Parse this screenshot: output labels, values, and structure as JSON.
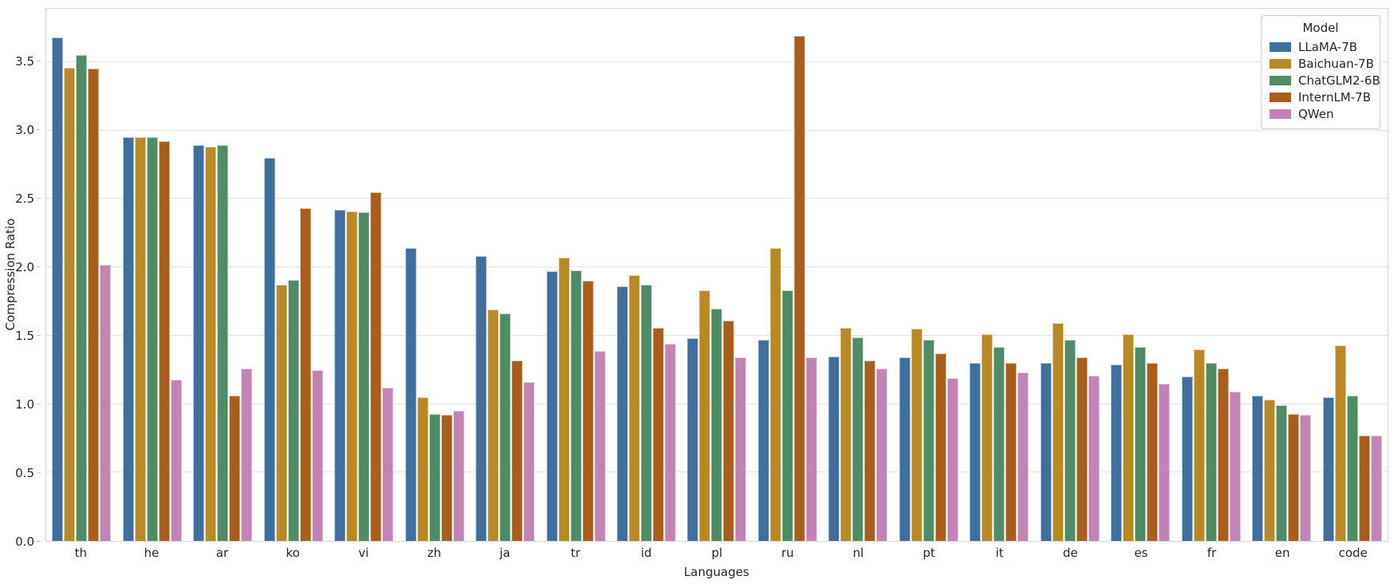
{
  "chart_data": {
    "type": "bar",
    "title": "",
    "xlabel": "Languages",
    "ylabel": "Compression Ratio",
    "legend_title": "Model",
    "legend_position": "upper right",
    "grid": true,
    "ylim": [
      0,
      3.89
    ],
    "yticks": [
      "0.0",
      "0.5",
      "1.0",
      "1.5",
      "2.0",
      "2.5",
      "3.0",
      "3.5"
    ],
    "ytick_values": [
      0.0,
      0.5,
      1.0,
      1.5,
      2.0,
      2.5,
      3.0,
      3.5
    ],
    "categories": [
      "th",
      "he",
      "ar",
      "ko",
      "vi",
      "zh",
      "ja",
      "tr",
      "id",
      "pl",
      "ru",
      "nl",
      "pt",
      "it",
      "de",
      "es",
      "fr",
      "en",
      "code"
    ],
    "series": [
      {
        "name": "LLaMA-7B",
        "color": "#3E6F9E",
        "values": [
          3.68,
          2.95,
          2.89,
          2.8,
          2.42,
          2.14,
          2.08,
          1.97,
          1.86,
          1.48,
          1.47,
          1.35,
          1.34,
          1.3,
          1.3,
          1.29,
          1.2,
          1.06,
          1.05
        ]
      },
      {
        "name": "Baichuan-7B",
        "color": "#B98A24",
        "values": [
          3.46,
          2.95,
          2.88,
          1.87,
          2.41,
          1.05,
          1.69,
          2.07,
          1.94,
          1.83,
          2.14,
          1.56,
          1.55,
          1.51,
          1.59,
          1.51,
          1.4,
          1.03,
          1.43
        ]
      },
      {
        "name": "ChatGLM2-6B",
        "color": "#4E8C68",
        "values": [
          3.55,
          2.95,
          2.89,
          1.91,
          2.4,
          0.93,
          1.66,
          1.98,
          1.87,
          1.7,
          1.83,
          1.49,
          1.47,
          1.42,
          1.47,
          1.42,
          1.3,
          0.99,
          1.06
        ]
      },
      {
        "name": "InternLM-7B",
        "color": "#A95E1C",
        "values": [
          3.45,
          2.92,
          1.06,
          2.43,
          2.55,
          0.92,
          1.32,
          1.9,
          1.56,
          1.61,
          3.69,
          1.32,
          1.37,
          1.3,
          1.34,
          1.3,
          1.26,
          0.93,
          0.77
        ]
      },
      {
        "name": "QWen",
        "color": "#C283B6",
        "values": [
          2.02,
          1.18,
          1.26,
          1.25,
          1.12,
          0.95,
          1.16,
          1.39,
          1.44,
          1.34,
          1.34,
          1.26,
          1.19,
          1.23,
          1.21,
          1.15,
          1.09,
          0.92,
          0.77
        ]
      }
    ]
  }
}
